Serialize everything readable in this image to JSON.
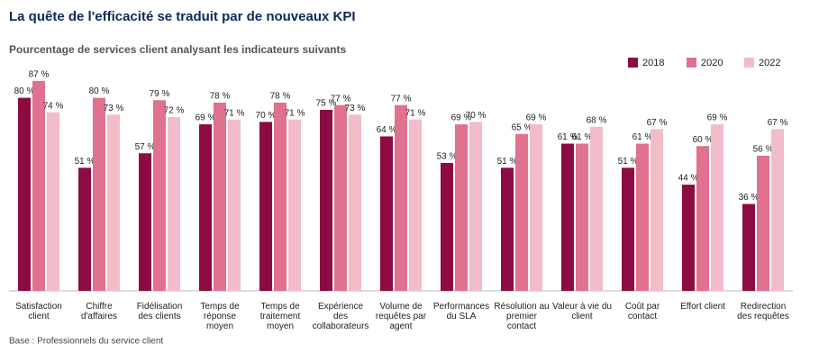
{
  "chart_data": {
    "type": "bar",
    "title": "La quête de l'efficacité se traduit par de nouveaux KPI",
    "subtitle": "Pourcentage de services client analysant les indicateurs suivants",
    "footnote": "Base : Professionnels du service client",
    "categories": [
      "Satisfaction client",
      "Chiffre d'affaires",
      "Fidélisation des clients",
      "Temps de réponse moyen",
      "Temps de traitement moyen",
      "Expérience des collaborateurs",
      "Volume de requêtes par agent",
      "Performances du SLA",
      "Résolution au premier contact",
      "Valeur à vie du client",
      "Coût par contact",
      "Effort client",
      "Redirection des requêtes"
    ],
    "legend": "top-right",
    "series": [
      {
        "name": "2018",
        "color": "#8c0b42",
        "values": [
          80,
          51,
          57,
          69,
          70,
          75,
          64,
          53,
          51,
          61,
          51,
          44,
          36
        ],
        "value_labels": [
          "80 %",
          "51 %",
          "57 %",
          "69 %",
          "70 %",
          "75 %",
          "64 %",
          "53 %",
          "51 %",
          "61 %",
          "51 %",
          "44 %",
          "36 %"
        ]
      },
      {
        "name": "2020",
        "color": "#e0718f",
        "values": [
          87,
          80,
          79,
          78,
          78,
          77,
          77,
          69,
          65,
          61,
          61,
          60,
          56
        ],
        "value_labels": [
          "87 %",
          "80 %",
          "79 %",
          "78 %",
          "78 %",
          "77 %",
          "77 %",
          "69 %",
          "65 %",
          "61 %",
          "61 %",
          "60 %",
          "56 %"
        ]
      },
      {
        "name": "2022",
        "color": "#f2bcc9",
        "values": [
          74,
          73,
          72,
          71,
          71,
          73,
          71,
          70,
          69,
          68,
          67,
          69,
          67
        ],
        "value_labels": [
          "74 %",
          "73 %",
          "72 %",
          "71 %",
          "71 %",
          "73 %",
          "71 %",
          "70 %",
          "69 %",
          "68 %",
          "67 %",
          "69 %",
          "67 %"
        ]
      }
    ]
  }
}
